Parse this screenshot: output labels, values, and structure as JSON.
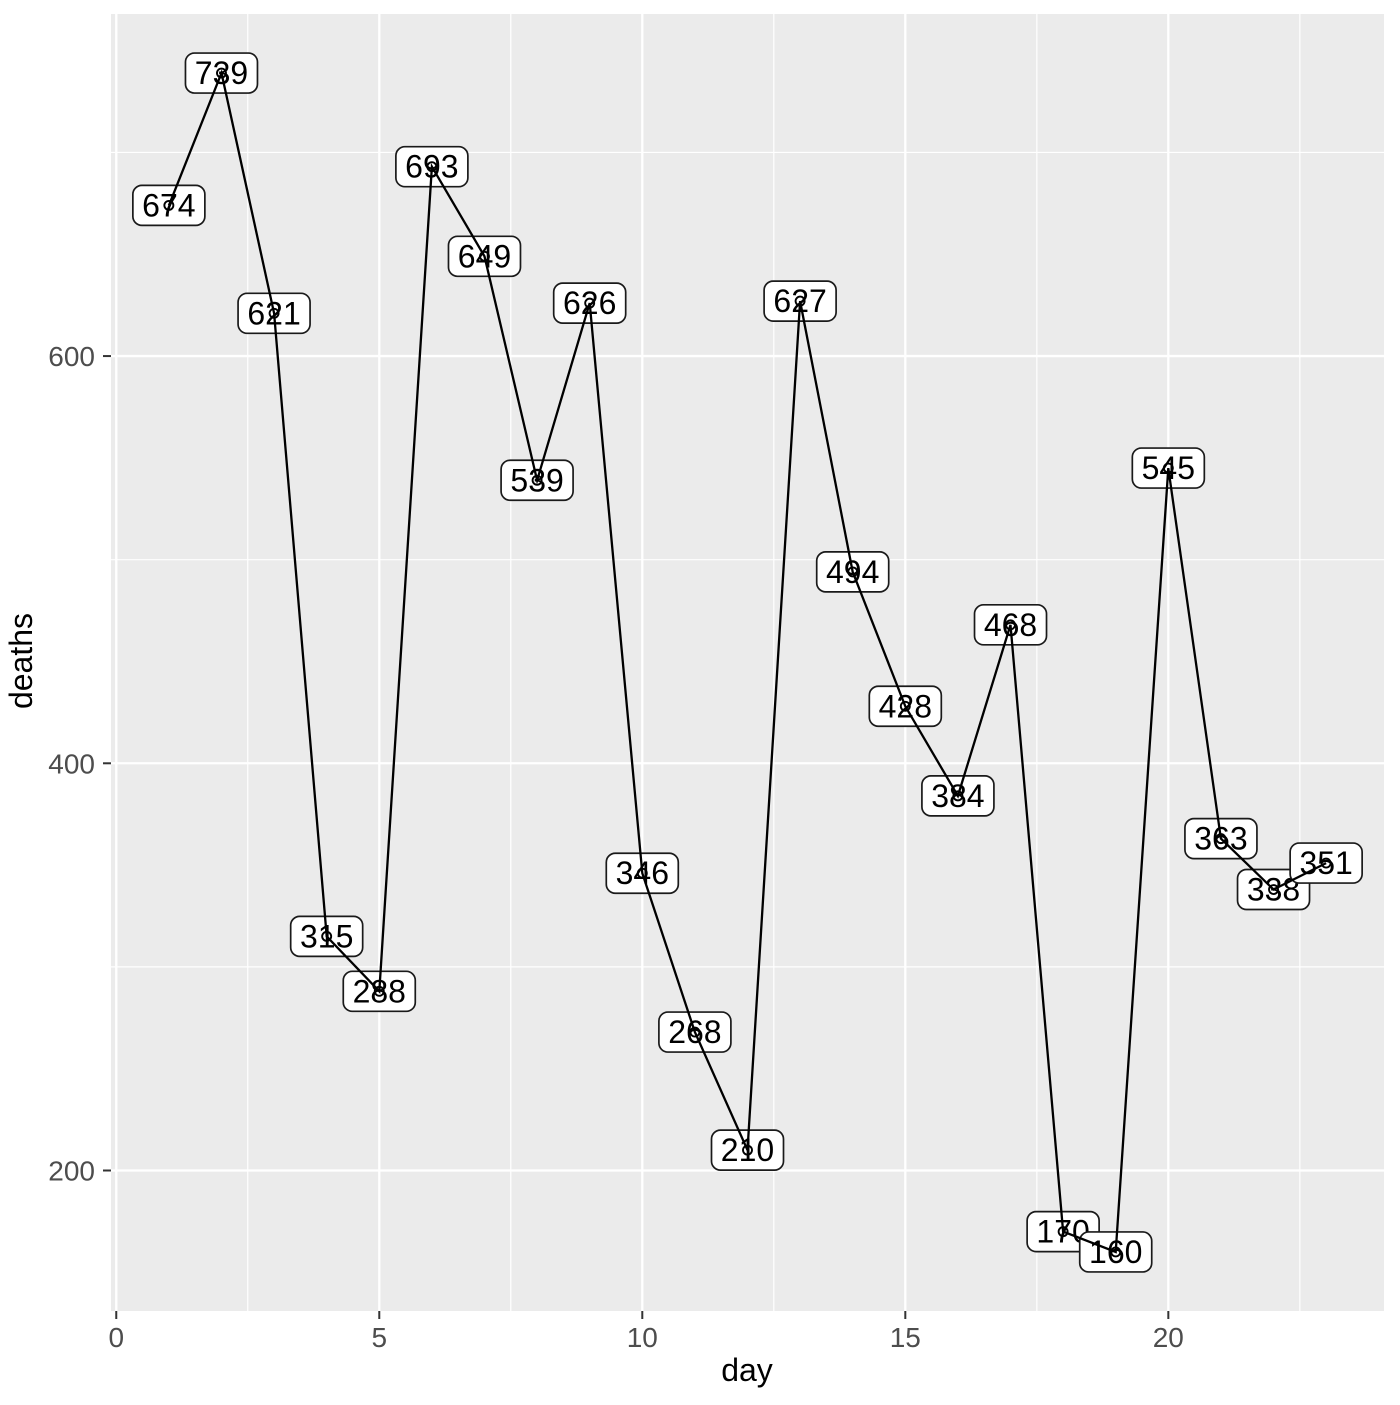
{
  "chart_data": {
    "type": "line",
    "title": "",
    "xlabel": "day",
    "ylabel": "deaths",
    "x": [
      1,
      2,
      3,
      4,
      5,
      6,
      7,
      8,
      9,
      10,
      11,
      12,
      13,
      14,
      15,
      16,
      17,
      18,
      19,
      20,
      21,
      22,
      23
    ],
    "values": [
      674,
      739,
      621,
      315,
      288,
      693,
      649,
      539,
      626,
      346,
      268,
      210,
      627,
      494,
      428,
      384,
      468,
      170,
      160,
      545,
      363,
      338,
      351
    ],
    "point_labels": [
      "674",
      "739",
      "621",
      "315",
      "288",
      "693",
      "649",
      "539",
      "626",
      "346",
      "268",
      "210",
      "627",
      "494",
      "428",
      "384",
      "468",
      "170",
      "160",
      "545",
      "363",
      "338",
      "351"
    ],
    "xlim": [
      -0.1,
      24.1
    ],
    "ylim": [
      131,
      768
    ],
    "x_major_ticks": [
      0,
      5,
      10,
      15,
      20
    ],
    "x_major_tick_labels": [
      "0",
      "5",
      "10",
      "15",
      "20"
    ],
    "x_minor_ticks": [
      2.5,
      7.5,
      12.5,
      17.5,
      22.5
    ],
    "y_major_ticks": [
      200,
      400,
      600
    ],
    "y_major_tick_labels": [
      "200",
      "400",
      "600"
    ],
    "y_minor_ticks": [
      300,
      500,
      700
    ],
    "grid": "on",
    "legend": "none",
    "colors": {
      "panel_bg": "#EBEBEB",
      "grid_major": "#FFFFFF",
      "grid_minor": "#FFFFFF",
      "line": "#000000",
      "point_stroke": "#000000",
      "label_bg": "#FFFFFF",
      "label_border": "#1A1A1A",
      "label_text": "#000000",
      "tick_mark": "#333333",
      "tick_label": "#4D4D4D",
      "axis_title": "#000000",
      "outer_bg": "#FFFFFF"
    }
  }
}
